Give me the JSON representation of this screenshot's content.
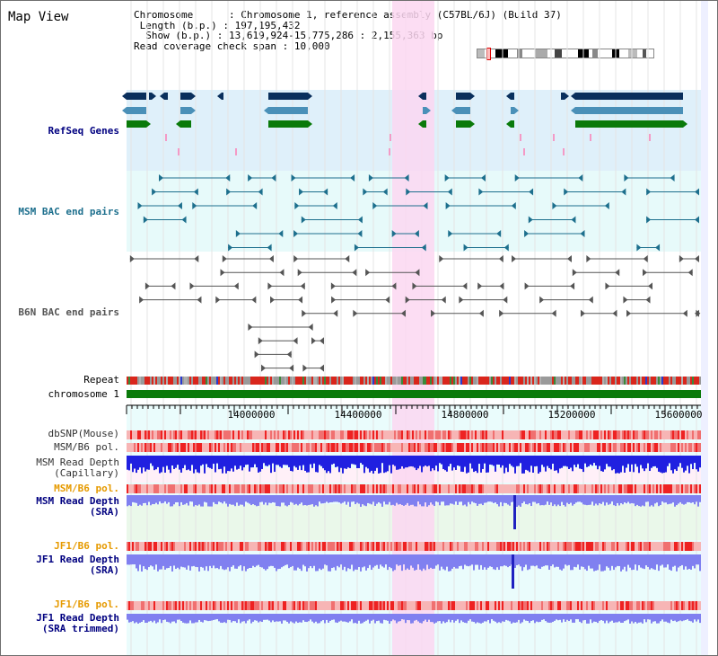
{
  "title": "Map View",
  "info": {
    "chromosome_key": "Chromosome",
    "chromosome_val": "Chromosome 1, reference assembly (C57BL/6J) (Build 37)",
    "length_key": "Length (b.p.)",
    "length_val": "197,195,432",
    "show_key": "Show (b.p.)",
    "show_val": "13,619,924-15,775,286 : 2,155,363 bp",
    "span_key": "Read coverage check span",
    "span_val": "10,000"
  },
  "tracks": {
    "refseq": "RefSeq Genes",
    "msm_bac": "MSM BAC end pairs",
    "b6n_bac": "B6N BAC end pairs",
    "repeat": "Repeat",
    "chromosome": "chromosome 1",
    "dbsnp": "dbSNP(Mouse)",
    "msm_pol": "MSM/B6 pol.",
    "msm_depth_cap": "MSM Read Depth\n(Capillary)",
    "msm_pol2": "MSM/B6 pol.",
    "msm_depth_sra": "MSM Read Depth\n(SRA)",
    "jf1_pol": "JF1/B6 pol.",
    "jf1_depth_sra": "JF1 Read Depth\n(SRA)",
    "jf1_pol2": "JF1/B6 pol.",
    "jf1_depth_trim": "JF1 Read Depth\n(SRA trimmed)"
  },
  "axis": {
    "ticks": [
      "14000000",
      "14400000",
      "14800000",
      "15200000",
      "15600000"
    ]
  },
  "colors": {
    "refseq_bg": "#dff0fa",
    "msm_bac_bg": "#e7fafa",
    "highlight": "#fbd7f1",
    "gene_dark": "#0a2f5c",
    "gene_mid": "#4a90b8",
    "gene_green": "#0a7a0a",
    "msm_bac": "#1d6f8d",
    "b6n_bac": "#555555",
    "chrom_green": "#0a7a0a",
    "snp_red": "#e64848",
    "depth_blue_dark": "#2020e0",
    "depth_blue_light": "#8080f0",
    "label_navy": "#000080",
    "label_orange": "#e69a00",
    "label_teal": "#1d6f8d"
  }
}
